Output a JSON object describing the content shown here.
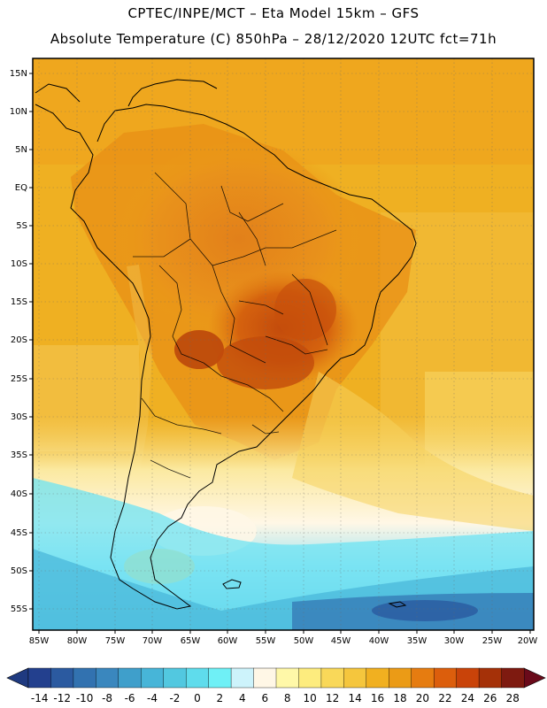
{
  "title": {
    "line1": "CPTEC/INPE/MCT –  Eta Model 15km – GFS",
    "line2": "Absolute Temperature (C) 850hPa – 28/12/2020 12UTC fct=71h"
  },
  "map": {
    "lat_labels": [
      "15N",
      "10N",
      "5N",
      "EQ",
      "5S",
      "10S",
      "15S",
      "20S",
      "25S",
      "30S",
      "35S",
      "40S",
      "45S",
      "50S",
      "55S"
    ],
    "lon_labels": [
      "85W",
      "80W",
      "75W",
      "70W",
      "65W",
      "60W",
      "55W",
      "50W",
      "45W",
      "40W",
      "35W",
      "30W",
      "25W",
      "20W"
    ]
  },
  "colorbar": {
    "labels": [
      "-14",
      "-12",
      "-10",
      "-8",
      "-6",
      "-4",
      "-2",
      "0",
      "2",
      "4",
      "6",
      "8",
      "10",
      "12",
      "14",
      "16",
      "18",
      "20",
      "22",
      "24",
      "26",
      "28"
    ],
    "colors": [
      "#23408e",
      "#2b5aa0",
      "#3272b0",
      "#3a87be",
      "#3f9fcb",
      "#47b5d8",
      "#52c8e0",
      "#5fdcec",
      "#6ff0f6",
      "#cdf3fb",
      "#fff7e6",
      "#fff8a8",
      "#fdec7e",
      "#f9d859",
      "#f5c63d",
      "#f1b020",
      "#eb9b16",
      "#e67c10",
      "#dc5e0c",
      "#c94309",
      "#a53108",
      "#7e1a10"
    ],
    "under_color": "#1f3a80",
    "over_color": "#6a0a1a"
  }
}
